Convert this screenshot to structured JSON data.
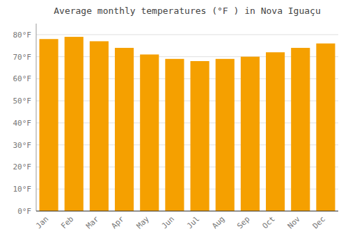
{
  "chart_data": {
    "type": "bar",
    "title": "Average monthly temperatures (°F ) in Nova Iguaçu",
    "categories": [
      "Jan",
      "Feb",
      "Mar",
      "Apr",
      "May",
      "Jun",
      "Jul",
      "Aug",
      "Sep",
      "Oct",
      "Nov",
      "Dec"
    ],
    "values": [
      78,
      79,
      77,
      74,
      71,
      69,
      68,
      69,
      70,
      72,
      74,
      76
    ],
    "color": "#F5A000",
    "ylim": [
      0,
      85
    ],
    "yticks": [
      {
        "value": 0,
        "label": "0°F"
      },
      {
        "value": 10,
        "label": "10°F"
      },
      {
        "value": 20,
        "label": "20°F"
      },
      {
        "value": 30,
        "label": "30°F"
      },
      {
        "value": 40,
        "label": "40°F"
      },
      {
        "value": 50,
        "label": "50°F"
      },
      {
        "value": 60,
        "label": "60°F"
      },
      {
        "value": 70,
        "label": "70°F"
      },
      {
        "value": 80,
        "label": "80°F"
      }
    ],
    "grid": true
  }
}
